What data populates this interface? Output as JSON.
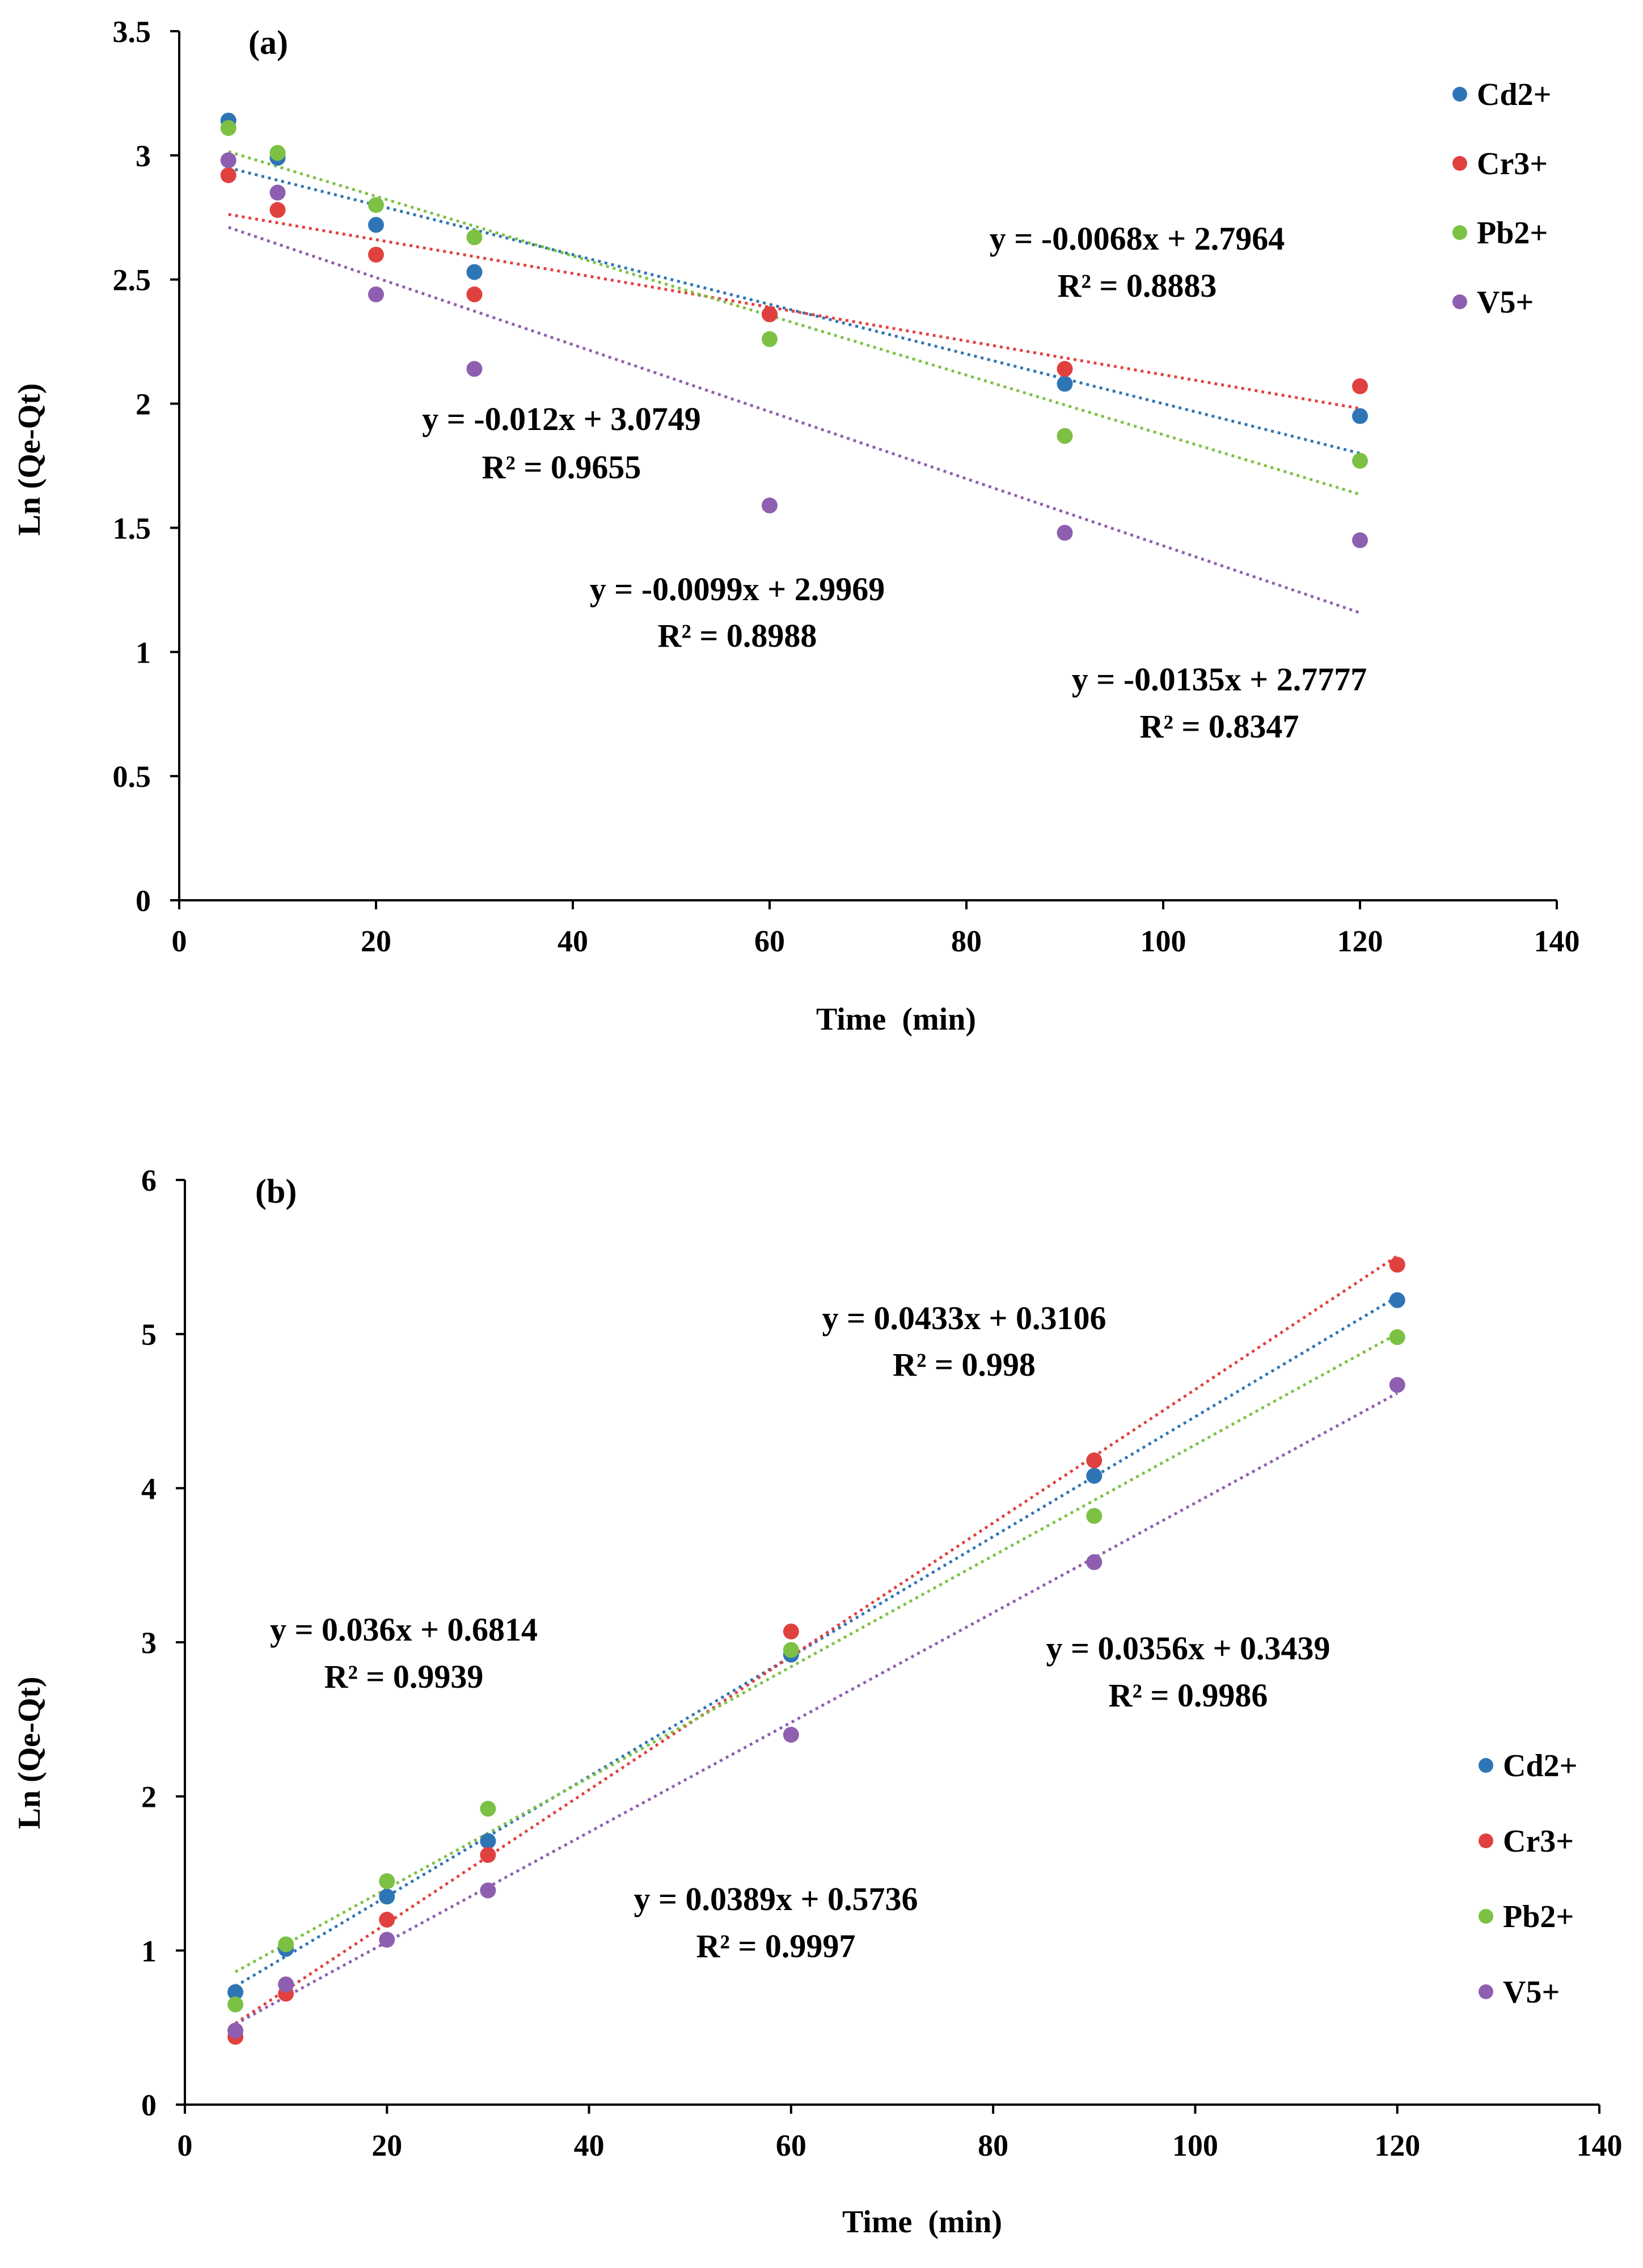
{
  "chart_data": [
    {
      "type": "scatter",
      "panel_label": "(a)",
      "xlabel": "Time  (min)",
      "ylabel": "Ln (Qe-Qt)",
      "xlim": [
        0,
        140
      ],
      "ylim": [
        0,
        3.5
      ],
      "xticks": [
        "0",
        "20",
        "40",
        "60",
        "80",
        "100",
        "120",
        "140"
      ],
      "yticks": [
        "0",
        "0.5",
        "1",
        "1.5",
        "2",
        "2.5",
        "3",
        "3.5"
      ],
      "x": [
        5,
        10,
        20,
        30,
        60,
        90,
        120
      ],
      "legend_position": "top-right",
      "series": [
        {
          "name": "Cd2+",
          "color": "#2E75B6",
          "values": [
            3.14,
            2.99,
            2.72,
            2.53,
            2.36,
            2.08,
            1.95
          ],
          "trend": {
            "slope": -0.01,
            "intercept": 3.0
          }
        },
        {
          "name": "Cr3+",
          "color": "#E0413F",
          "values": [
            2.92,
            2.78,
            2.6,
            2.44,
            2.36,
            2.14,
            2.07
          ],
          "trend": {
            "slope": -0.0068,
            "intercept": 2.7964
          }
        },
        {
          "name": "Pb2+",
          "color": "#7CC143",
          "values": [
            3.11,
            3.01,
            2.8,
            2.67,
            2.26,
            1.87,
            1.77
          ],
          "trend": {
            "slope": -0.012,
            "intercept": 3.0749
          }
        },
        {
          "name": "V5+",
          "color": "#8E5FB0",
          "values": [
            2.98,
            2.85,
            2.44,
            2.14,
            1.59,
            1.48,
            1.45
          ],
          "trend": {
            "slope": -0.0135,
            "intercept": 2.7777
          }
        }
      ],
      "annotations": [
        {
          "eq": "y = -0.0068x + 2.7964",
          "r2": "R² = 0.8883"
        },
        {
          "eq": "y = -0.012x + 3.0749",
          "r2": "R² = 0.9655"
        },
        {
          "eq": "y = -0.0099x + 2.9969",
          "r2": "R² = 0.8988"
        },
        {
          "eq": "y = -0.0135x + 2.7777",
          "r2": "R² = 0.8347"
        }
      ]
    },
    {
      "type": "scatter",
      "panel_label": "(b)",
      "xlabel": "Time  (min)",
      "ylabel": "Ln (Qe-Qt)",
      "xlim": [
        0,
        140
      ],
      "ylim": [
        0,
        6
      ],
      "xticks": [
        "0",
        "20",
        "40",
        "60",
        "80",
        "100",
        "120",
        "140"
      ],
      "yticks": [
        "0",
        "1",
        "2",
        "3",
        "4",
        "5",
        "6"
      ],
      "x": [
        5,
        10,
        20,
        30,
        60,
        90,
        120
      ],
      "legend_position": "bottom-right",
      "series": [
        {
          "name": "Cd2+",
          "color": "#2E75B6",
          "values": [
            0.73,
            1.01,
            1.35,
            1.71,
            2.92,
            4.08,
            5.22
          ],
          "trend": {
            "slope": 0.0389,
            "intercept": 0.5736
          }
        },
        {
          "name": "Cr3+",
          "color": "#E0413F",
          "values": [
            0.44,
            0.72,
            1.2,
            1.62,
            3.07,
            4.18,
            5.45
          ],
          "trend": {
            "slope": 0.0433,
            "intercept": 0.3106
          }
        },
        {
          "name": "Pb2+",
          "color": "#7CC143",
          "values": [
            0.65,
            1.04,
            1.45,
            1.92,
            2.95,
            3.82,
            4.98
          ],
          "trend": {
            "slope": 0.036,
            "intercept": 0.6814
          }
        },
        {
          "name": "V5+",
          "color": "#8E5FB0",
          "values": [
            0.48,
            0.78,
            1.07,
            1.39,
            2.4,
            3.52,
            4.67
          ],
          "trend": {
            "slope": 0.0356,
            "intercept": 0.3439
          }
        }
      ],
      "annotations": [
        {
          "eq": "y = 0.0433x + 0.3106",
          "r2": "R² = 0.998"
        },
        {
          "eq": "y = 0.036x + 0.6814",
          "r2": "R² = 0.9939"
        },
        {
          "eq": "y = 0.0356x + 0.3439",
          "r2": "R² = 0.9986"
        },
        {
          "eq": "y = 0.0389x + 0.5736",
          "r2": "R² = 0.9997"
        }
      ]
    }
  ]
}
